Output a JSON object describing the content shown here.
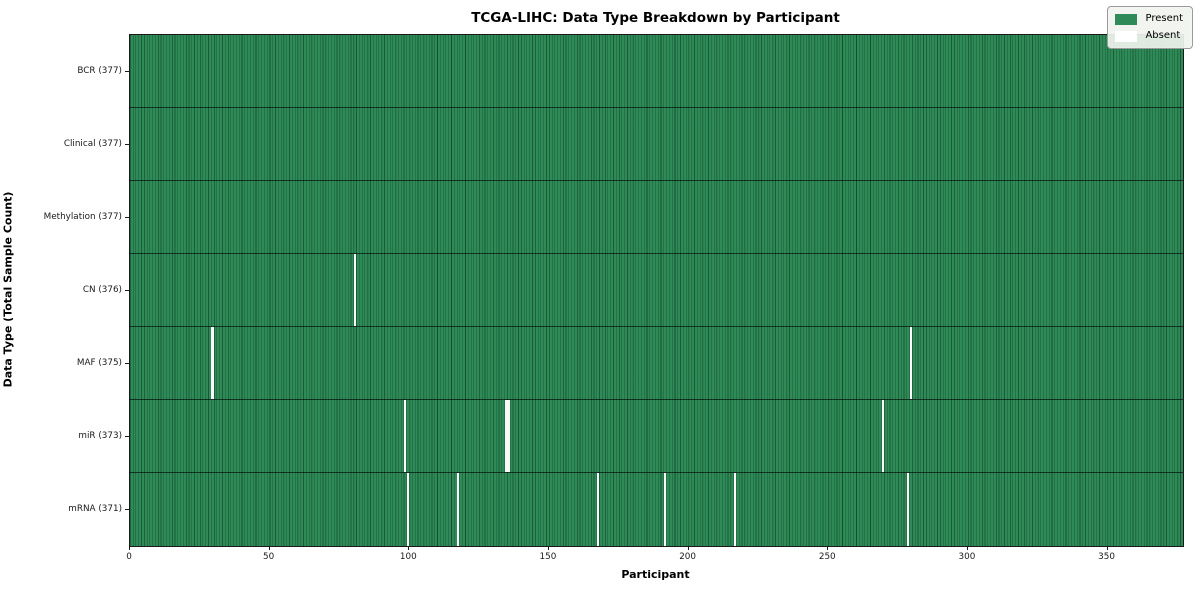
{
  "chart_data": {
    "type": "heatmap",
    "title": "TCGA-LIHC: Data Type Breakdown by Participant",
    "xlabel": "Participant",
    "ylabel": "Data Type (Total Sample Count)",
    "x_ticks": [
      0,
      50,
      100,
      150,
      200,
      250,
      300,
      350
    ],
    "x_range": [
      0,
      377
    ],
    "n_participants": 377,
    "grid": "cell-borders",
    "legend_position": "upper right",
    "rows": [
      {
        "label": "BCR (377)",
        "data_type": "BCR",
        "present_count": 377,
        "absent_participants": []
      },
      {
        "label": "Clinical (377)",
        "data_type": "Clinical",
        "present_count": 377,
        "absent_participants": []
      },
      {
        "label": "Methylation (377)",
        "data_type": "Methylation",
        "present_count": 377,
        "absent_participants": []
      },
      {
        "label": "CN (376)",
        "data_type": "CN",
        "present_count": 376,
        "absent_participants": [
          80
        ]
      },
      {
        "label": "MAF (375)",
        "data_type": "MAF",
        "present_count": 375,
        "absent_participants": [
          29,
          279
        ]
      },
      {
        "label": "miR (373)",
        "data_type": "miR",
        "present_count": 373,
        "absent_participants": [
          98,
          134,
          135,
          269
        ]
      },
      {
        "label": "mRNA (371)",
        "data_type": "mRNA",
        "present_count": 371,
        "absent_participants": [
          99,
          117,
          167,
          191,
          216,
          278
        ]
      }
    ],
    "legend": [
      {
        "label": "Present",
        "color": "#2e8b57"
      },
      {
        "label": "Absent",
        "color": "#ffffff"
      }
    ],
    "colors": {
      "present": "#2e8b57",
      "absent": "#ffffff",
      "cell_border": "rgba(8,40,24,0.5)",
      "row_border": "rgba(0,0,0,0.62)",
      "spine": "#1a1a1a"
    }
  }
}
